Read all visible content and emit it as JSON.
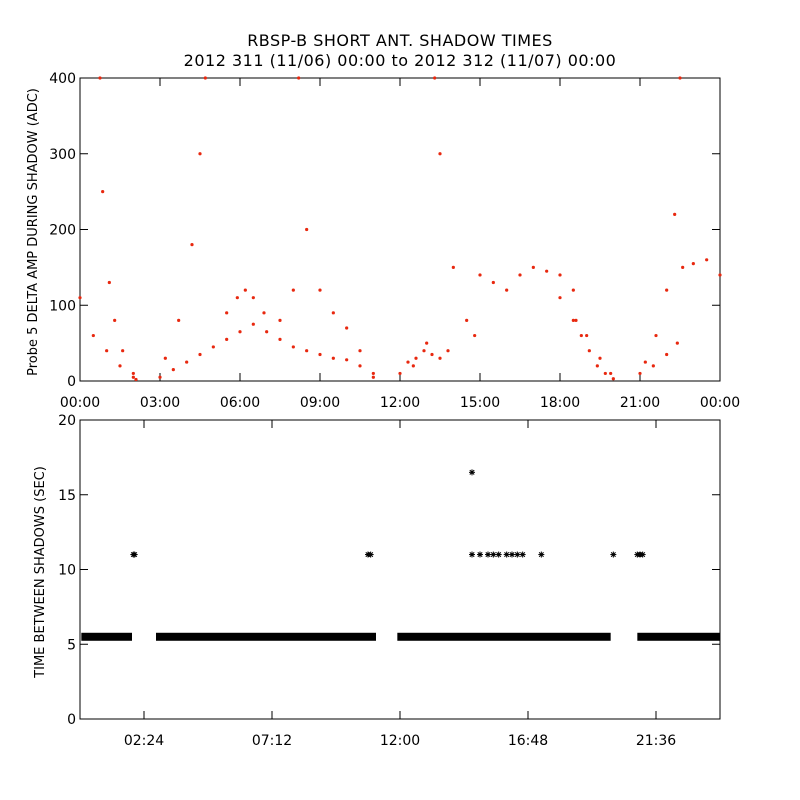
{
  "title": "RBSP-B SHORT ANT. SHADOW TIMES",
  "subtitle": "2012 311 (11/06) 00:00 to 2012 312 (11/07) 00:00",
  "colors": {
    "upper_points": "#e8280f",
    "lower_points": "#000000",
    "axis": "#000000"
  },
  "chart_data": [
    {
      "type": "scatter",
      "ylabel": "Probe 5 DELTA AMP DURING SHADOW (ADC)",
      "xlabel": "",
      "xlim": [
        0,
        24
      ],
      "ylim": [
        0,
        400
      ],
      "x_ticks": [
        0,
        3,
        6,
        9,
        12,
        15,
        18,
        21,
        24
      ],
      "x_tick_labels": [
        "00:00",
        "03:00",
        "06:00",
        "09:00",
        "12:00",
        "15:00",
        "18:00",
        "21:00",
        "00:00"
      ],
      "y_ticks": [
        0,
        100,
        200,
        300,
        400
      ],
      "y_tick_labels": [
        "0",
        "100",
        "200",
        "300",
        "400"
      ],
      "grid": false,
      "series": [
        {
          "marker": "dot",
          "x": [
            0.0,
            0.5,
            1.0,
            1.5,
            2.0,
            2.1,
            0.75,
            0.85,
            1.1,
            1.3,
            1.6,
            2.0,
            3.0,
            3.5,
            4.0,
            4.5,
            5.0,
            5.5,
            6.0,
            6.5,
            7.0,
            7.5,
            8.0,
            8.5,
            9.0,
            9.5,
            10.0,
            10.5,
            11.0,
            3.2,
            3.7,
            4.2,
            4.5,
            4.7,
            5.5,
            5.9,
            6.2,
            6.5,
            6.9,
            7.5,
            8.0,
            8.2,
            8.5,
            9.0,
            9.5,
            10.0,
            10.5,
            11.0,
            12.0,
            12.5,
            13.0,
            13.3,
            13.5,
            14.0,
            14.5,
            14.8,
            12.3,
            12.6,
            12.9,
            13.2,
            13.5,
            13.8,
            15.0,
            15.5,
            16.0,
            16.5,
            17.0,
            17.5,
            18.0,
            18.5,
            18.0,
            18.5,
            18.8,
            19.1,
            19.4,
            19.7,
            20.0,
            18.6,
            19.0,
            19.5,
            19.9,
            21.0,
            21.5,
            22.0,
            22.4,
            21.2,
            21.6,
            22.0,
            22.3,
            22.5,
            22.6,
            23.0,
            23.5,
            24.0
          ],
          "y": [
            110,
            60,
            40,
            20,
            5,
            2,
            400,
            250,
            130,
            80,
            40,
            10,
            5,
            15,
            25,
            35,
            45,
            55,
            65,
            75,
            65,
            55,
            45,
            40,
            35,
            30,
            28,
            20,
            5,
            30,
            80,
            180,
            300,
            400,
            90,
            110,
            120,
            110,
            90,
            80,
            120,
            400,
            200,
            120,
            90,
            70,
            40,
            10,
            10,
            20,
            50,
            400,
            300,
            150,
            80,
            60,
            25,
            30,
            40,
            35,
            30,
            40,
            140,
            130,
            120,
            140,
            150,
            145,
            140,
            120,
            110,
            80,
            60,
            40,
            20,
            10,
            3,
            80,
            60,
            30,
            10,
            10,
            20,
            35,
            50,
            25,
            60,
            120,
            220,
            400,
            150,
            155,
            160,
            140
          ]
        }
      ]
    },
    {
      "type": "scatter",
      "ylabel": "TIME BETWEEN SHADOWS (SEC)",
      "xlabel": "",
      "xlim": [
        0,
        24
      ],
      "ylim": [
        0,
        20
      ],
      "x_ticks": [
        2.4,
        7.2,
        12.0,
        16.8,
        21.6
      ],
      "x_tick_labels": [
        "02:24",
        "07:12",
        "12:00",
        "16:48",
        "21:36"
      ],
      "y_ticks": [
        0,
        5,
        10,
        15,
        20
      ],
      "y_tick_labels": [
        "0",
        "5",
        "10",
        "15",
        "20"
      ],
      "grid": false,
      "segments_y": 5.5,
      "segments": [
        [
          0.05,
          1.95
        ],
        [
          2.85,
          11.1
        ],
        [
          11.9,
          19.9
        ],
        [
          20.9,
          24.0
        ]
      ],
      "series": [
        {
          "marker": "asterisk",
          "x": [
            2.0,
            2.05,
            10.8,
            10.9,
            14.7,
            14.7,
            15.0,
            15.3,
            15.5,
            15.7,
            16.0,
            16.2,
            16.4,
            16.6,
            17.3,
            20.0,
            20.9,
            21.0,
            21.1
          ],
          "y": [
            11,
            11,
            11,
            11,
            16.5,
            11,
            11,
            11,
            11,
            11,
            11,
            11,
            11,
            11,
            11,
            11,
            11,
            11,
            11
          ]
        }
      ]
    }
  ]
}
